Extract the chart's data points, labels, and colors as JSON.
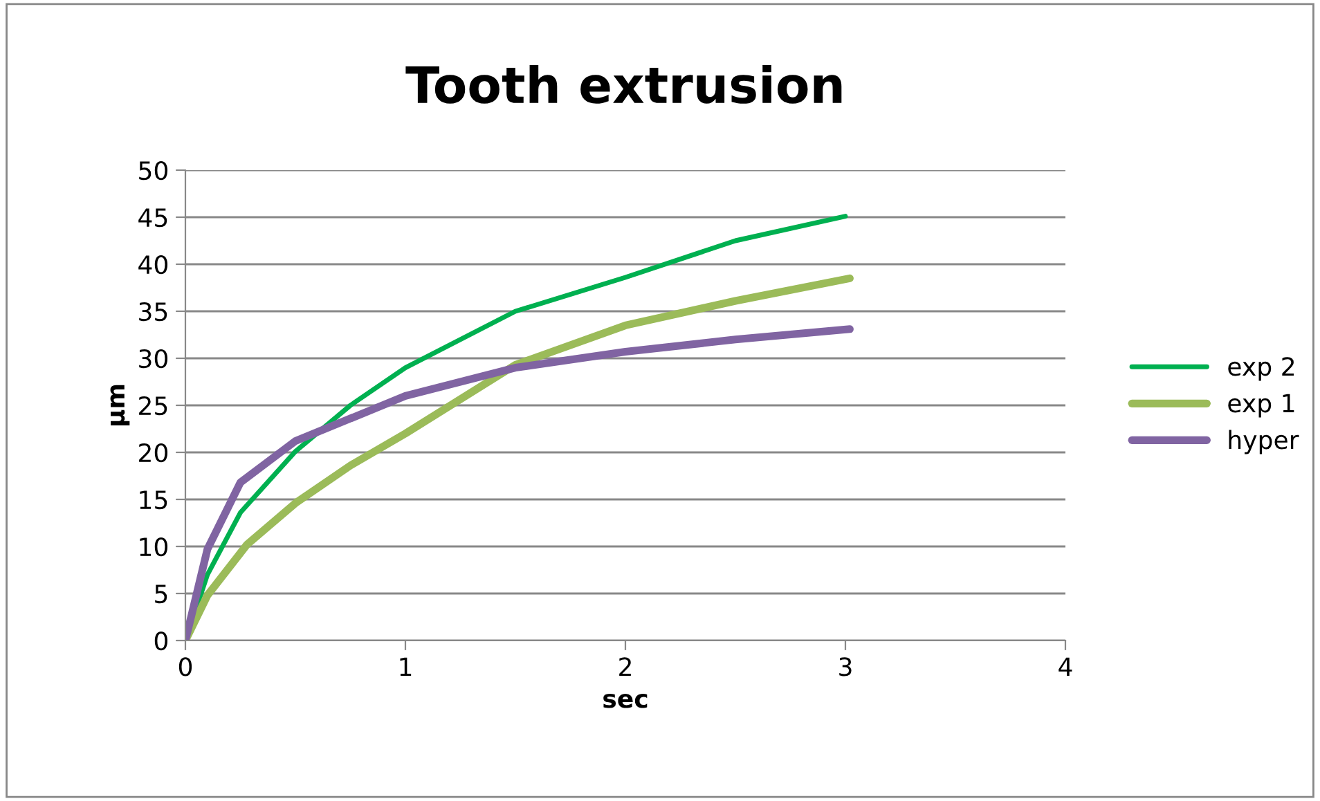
{
  "chart_data": {
    "type": "line",
    "title": "Tooth extrusion",
    "xlabel": "sec",
    "ylabel": "µm",
    "xlim": [
      0,
      4
    ],
    "xticks": [
      0,
      1,
      2,
      3,
      4
    ],
    "ylim": [
      0,
      50
    ],
    "yticks": [
      0,
      5,
      10,
      15,
      20,
      25,
      30,
      35,
      40,
      45,
      50
    ],
    "grid": "y",
    "legend": "right",
    "marker": "none",
    "series": [
      {
        "name": "exp 2",
        "color": "#00b050",
        "x": [
          0,
          0.1,
          0.25,
          0.5,
          0.75,
          1,
          1.5,
          2,
          2.5,
          3
        ],
        "values": [
          0,
          7,
          13.6,
          20.1,
          25,
          29,
          35,
          38.6,
          42.5,
          45.1
        ]
      },
      {
        "name": "exp 1",
        "color": "#9bbb59",
        "x": [
          0,
          0.1,
          0.28,
          0.5,
          0.75,
          1,
          1.5,
          2,
          2.5,
          3.02
        ],
        "values": [
          0,
          4.8,
          10.2,
          14.6,
          18.6,
          22,
          29.3,
          33.5,
          36.1,
          38.5
        ]
      },
      {
        "name": "hyper",
        "color": "#8064a2",
        "x": [
          0,
          0.1,
          0.25,
          0.5,
          1,
          1.5,
          2,
          2.5,
          3.02
        ],
        "values": [
          0,
          9.7,
          16.8,
          21.2,
          26,
          29,
          30.7,
          32,
          33.1
        ]
      }
    ]
  }
}
